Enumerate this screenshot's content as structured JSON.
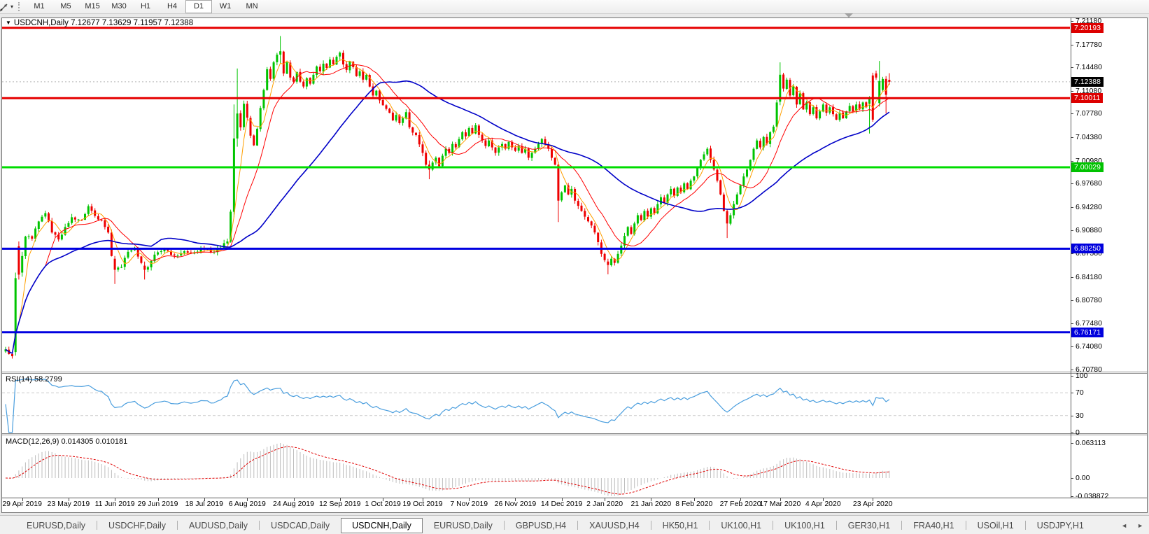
{
  "chart_title": {
    "symbol": "USDCNH,Daily",
    "ohlc": "7.12677 7.13629 7.11957 7.12388"
  },
  "icons": {
    "collapse": "▼",
    "tool_caret": "▾",
    "scroll_left": "◄",
    "scroll_right": "►"
  },
  "toolbar": {
    "timeframes": [
      "M1",
      "M5",
      "M15",
      "M30",
      "H1",
      "H4",
      "D1",
      "W1",
      "MN"
    ],
    "active": "D1"
  },
  "indicators": {
    "rsi_label": "RSI(14) 58.2799",
    "macd_label": "MACD(12,26,9) 0.014305 0.010181"
  },
  "price_axis": {
    "ticks": [
      "7.21180",
      "7.17780",
      "7.14480",
      "7.11080",
      "7.07780",
      "7.04380",
      "7.00980",
      "6.97680",
      "6.94280",
      "6.90880",
      "6.87580",
      "6.84180",
      "6.80780",
      "6.77480",
      "6.74080",
      "6.70780"
    ],
    "badges": [
      {
        "label": "7.20193",
        "value": 7.20193,
        "color": "#dd0000"
      },
      {
        "label": "7.12388",
        "value": 7.12388,
        "color": "#000000"
      },
      {
        "label": "7.10011",
        "value": 7.10011,
        "color": "#dd0000"
      },
      {
        "label": "7.00029",
        "value": 7.00029,
        "color": "#00c200"
      },
      {
        "label": "6.88250",
        "value": 6.8825,
        "color": "#0000dd"
      },
      {
        "label": "6.76171",
        "value": 6.76171,
        "color": "#0000dd"
      }
    ]
  },
  "rsi_axis": {
    "ticks": [
      {
        "label": "100",
        "value": 100
      },
      {
        "label": "70",
        "value": 70
      },
      {
        "label": "30",
        "value": 30
      },
      {
        "label": "0",
        "value": 0
      }
    ],
    "levels": [
      70,
      30
    ]
  },
  "macd_axis": {
    "ticks": [
      {
        "label": "0.063113",
        "value": 0.063113
      },
      {
        "label": "0.00",
        "value": 0
      },
      {
        "label": "-0.038872",
        "value": -0.038872
      }
    ]
  },
  "dates": [
    {
      "label": "29 Apr 2019",
      "i": 5
    },
    {
      "label": "23 May 2019",
      "i": 19
    },
    {
      "label": "11 Jun 2019",
      "i": 33
    },
    {
      "label": "29 Jun 2019",
      "i": 46
    },
    {
      "label": "18 Jul 2019",
      "i": 60
    },
    {
      "label": "6 Aug 2019",
      "i": 73
    },
    {
      "label": "24 Aug 2019",
      "i": 87
    },
    {
      "label": "12 Sep 2019",
      "i": 101
    },
    {
      "label": "1 Oct 2019",
      "i": 114
    },
    {
      "label": "19 Oct 2019",
      "i": 126
    },
    {
      "label": "7 Nov 2019",
      "i": 140
    },
    {
      "label": "26 Nov 2019",
      "i": 154
    },
    {
      "label": "14 Dec 2019",
      "i": 168
    },
    {
      "label": "2 Jan 2020",
      "i": 181
    },
    {
      "label": "21 Jan 2020",
      "i": 195
    },
    {
      "label": "8 Feb 2020",
      "i": 208
    },
    {
      "label": "27 Feb 2020",
      "i": 222
    },
    {
      "label": "17 Mar 2020",
      "i": 234
    },
    {
      "label": "4 Apr 2020",
      "i": 247
    },
    {
      "label": "23 Apr 2020",
      "i": 262
    }
  ],
  "tabs": {
    "items": [
      "EURUSD,Daily",
      "USDCHF,Daily",
      "AUDUSD,Daily",
      "USDCAD,Daily",
      "USDCNH,Daily",
      "EURUSD,Daily",
      "GBPUSD,H4",
      "XAUUSD,H4",
      "HK50,H1",
      "UK100,H1",
      "UK100,H1",
      "GER30,H1",
      "FRA40,H1",
      "USOil,H1",
      "USDJPY,H1"
    ],
    "active_index": 4
  },
  "chart_data": {
    "type": "candlestick",
    "symbol": "USDCNH",
    "timeframe": "Daily",
    "last": {
      "open": 7.12677,
      "high": 7.13629,
      "low": 7.11957,
      "close": 7.12388
    },
    "candle_count": 268,
    "bar_spacing": 4.73,
    "price_top": 7.2158,
    "price_bottom": 6.7048,
    "current_price": 7.12388,
    "colors": {
      "up": "#00c400",
      "down": "#ee0000",
      "ma_fast": "#ff9f00",
      "ma_mid": "#ff0000",
      "ma_slow": "#0000c8",
      "rsi": "#4a9ede",
      "macd_hist": "#bdbdbd",
      "macd_signal": "#e00000",
      "current_dotted": "#b4b4b4"
    },
    "moving_averages": [
      {
        "period": 5,
        "color_key": "ma_fast"
      },
      {
        "period": 13,
        "color_key": "ma_mid"
      },
      {
        "period": 45,
        "color_key": "ma_slow"
      }
    ],
    "hlines": [
      {
        "price": 7.20193,
        "color": "#e60000"
      },
      {
        "price": 7.10011,
        "color": "#e60000"
      },
      {
        "price": 7.00029,
        "color": "#00dc00"
      },
      {
        "price": 6.8825,
        "color": "#0000e0"
      },
      {
        "price": 6.76171,
        "color": "#0000e0"
      }
    ],
    "rsi": {
      "period": 14,
      "current": 58.2799
    },
    "macd": {
      "fast": 12,
      "slow": 26,
      "signal": 9,
      "current": 0.014305,
      "current_signal": 0.010181,
      "scale_max": 0.063113,
      "scale_min": -0.038872
    },
    "anchors": [
      [
        0,
        6.737
      ],
      [
        2,
        6.727
      ],
      [
        3,
        6.84
      ],
      [
        4,
        6.845
      ],
      [
        5,
        6.872
      ],
      [
        6,
        6.9
      ],
      [
        8,
        6.897
      ],
      [
        10,
        6.922
      ],
      [
        12,
        6.934
      ],
      [
        14,
        6.906
      ],
      [
        16,
        6.896
      ],
      [
        18,
        6.914
      ],
      [
        20,
        6.928
      ],
      [
        23,
        6.924
      ],
      [
        25,
        6.944
      ],
      [
        27,
        6.93
      ],
      [
        29,
        6.924
      ],
      [
        31,
        6.906
      ],
      [
        32,
        6.872
      ],
      [
        33,
        6.852
      ],
      [
        35,
        6.856
      ],
      [
        37,
        6.878
      ],
      [
        39,
        6.884
      ],
      [
        41,
        6.862
      ],
      [
        42,
        6.852
      ],
      [
        43,
        6.856
      ],
      [
        45,
        6.874
      ],
      [
        48,
        6.882
      ],
      [
        51,
        6.873
      ],
      [
        54,
        6.879
      ],
      [
        57,
        6.877
      ],
      [
        60,
        6.882
      ],
      [
        63,
        6.878
      ],
      [
        65,
        6.884
      ],
      [
        67,
        6.893
      ],
      [
        68,
        6.936
      ],
      [
        69,
        7.042
      ],
      [
        70,
        7.078
      ],
      [
        71,
        7.058
      ],
      [
        72,
        7.092
      ],
      [
        73,
        7.072
      ],
      [
        74,
        7.046
      ],
      [
        75,
        7.032
      ],
      [
        76,
        7.056
      ],
      [
        77,
        7.086
      ],
      [
        78,
        7.112
      ],
      [
        79,
        7.142
      ],
      [
        80,
        7.128
      ],
      [
        81,
        7.152
      ],
      [
        82,
        7.163
      ],
      [
        83,
        7.168
      ],
      [
        84,
        7.136
      ],
      [
        85,
        7.152
      ],
      [
        86,
        7.13
      ],
      [
        87,
        7.124
      ],
      [
        88,
        7.138
      ],
      [
        89,
        7.124
      ],
      [
        90,
        7.117
      ],
      [
        91,
        7.129
      ],
      [
        92,
        7.121
      ],
      [
        93,
        7.134
      ],
      [
        94,
        7.146
      ],
      [
        95,
        7.139
      ],
      [
        96,
        7.15
      ],
      [
        97,
        7.144
      ],
      [
        98,
        7.156
      ],
      [
        99,
        7.149
      ],
      [
        100,
        7.16
      ],
      [
        101,
        7.166
      ],
      [
        102,
        7.149
      ],
      [
        103,
        7.141
      ],
      [
        104,
        7.153
      ],
      [
        105,
        7.145
      ],
      [
        106,
        7.132
      ],
      [
        107,
        7.139
      ],
      [
        108,
        7.127
      ],
      [
        109,
        7.134
      ],
      [
        110,
        7.117
      ],
      [
        111,
        7.104
      ],
      [
        112,
        7.111
      ],
      [
        113,
        7.097
      ],
      [
        114,
        7.09
      ],
      [
        116,
        7.079
      ],
      [
        117,
        7.068
      ],
      [
        118,
        7.076
      ],
      [
        119,
        7.064
      ],
      [
        120,
        7.071
      ],
      [
        121,
        7.08
      ],
      [
        122,
        7.058
      ],
      [
        124,
        7.047
      ],
      [
        126,
        7.021
      ],
      [
        127,
        7.004
      ],
      [
        128,
        6.997
      ],
      [
        129,
        7.007
      ],
      [
        130,
        7.014
      ],
      [
        131,
        7.002
      ],
      [
        132,
        7.017
      ],
      [
        133,
        7.027
      ],
      [
        134,
        7.021
      ],
      [
        135,
        7.034
      ],
      [
        136,
        7.029
      ],
      [
        137,
        7.041
      ],
      [
        138,
        7.051
      ],
      [
        139,
        7.045
      ],
      [
        140,
        7.057
      ],
      [
        141,
        7.049
      ],
      [
        142,
        7.061
      ],
      [
        143,
        7.047
      ],
      [
        144,
        7.039
      ],
      [
        145,
        7.031
      ],
      [
        146,
        7.039
      ],
      [
        147,
        7.029
      ],
      [
        148,
        7.021
      ],
      [
        149,
        7.029
      ],
      [
        150,
        7.034
      ],
      [
        151,
        7.027
      ],
      [
        152,
        7.037
      ],
      [
        153,
        7.029
      ],
      [
        154,
        7.024
      ],
      [
        155,
        7.031
      ],
      [
        156,
        7.021
      ],
      [
        157,
        7.027
      ],
      [
        158,
        7.014
      ],
      [
        159,
        7.021
      ],
      [
        160,
        7.027
      ],
      [
        161,
        7.034
      ],
      [
        162,
        7.041
      ],
      [
        163,
        7.034
      ],
      [
        164,
        7.027
      ],
      [
        165,
        7.014
      ],
      [
        166,
        7.004
      ],
      [
        167,
        6.952
      ],
      [
        168,
        6.964
      ],
      [
        169,
        6.974
      ],
      [
        170,
        6.961
      ],
      [
        171,
        6.969
      ],
      [
        172,
        6.952
      ],
      [
        174,
        6.937
      ],
      [
        176,
        6.922
      ],
      [
        178,
        6.906
      ],
      [
        179,
        6.892
      ],
      [
        180,
        6.875
      ],
      [
        181,
        6.866
      ],
      [
        182,
        6.859
      ],
      [
        183,
        6.868
      ],
      [
        184,
        6.862
      ],
      [
        185,
        6.875
      ],
      [
        186,
        6.887
      ],
      [
        187,
        6.901
      ],
      [
        188,
        6.914
      ],
      [
        189,
        6.904
      ],
      [
        190,
        6.919
      ],
      [
        191,
        6.931
      ],
      [
        192,
        6.924
      ],
      [
        193,
        6.937
      ],
      [
        194,
        6.929
      ],
      [
        195,
        6.941
      ],
      [
        196,
        6.934
      ],
      [
        197,
        6.947
      ],
      [
        198,
        6.957
      ],
      [
        199,
        6.949
      ],
      [
        200,
        6.961
      ],
      [
        201,
        6.969
      ],
      [
        202,
        6.959
      ],
      [
        203,
        6.971
      ],
      [
        204,
        6.964
      ],
      [
        205,
        6.977
      ],
      [
        206,
        6.969
      ],
      [
        207,
        6.981
      ],
      [
        208,
        6.987
      ],
      [
        209,
        6.999
      ],
      [
        210,
        7.011
      ],
      [
        211,
        7.019
      ],
      [
        212,
        7.027
      ],
      [
        213,
        7.011
      ],
      [
        214,
        6.997
      ],
      [
        215,
        6.981
      ],
      [
        216,
        6.961
      ],
      [
        217,
        6.937
      ],
      [
        218,
        6.919
      ],
      [
        219,
        6.931
      ],
      [
        220,
        6.947
      ],
      [
        221,
        6.961
      ],
      [
        222,
        6.974
      ],
      [
        223,
        6.987
      ],
      [
        224,
        6.997
      ],
      [
        225,
        7.011
      ],
      [
        226,
        7.027
      ],
      [
        227,
        7.039
      ],
      [
        228,
        7.029
      ],
      [
        229,
        7.044
      ],
      [
        230,
        7.034
      ],
      [
        231,
        7.051
      ],
      [
        232,
        7.059
      ],
      [
        233,
        7.094
      ],
      [
        234,
        7.134
      ],
      [
        235,
        7.114
      ],
      [
        236,
        7.127
      ],
      [
        237,
        7.104
      ],
      [
        238,
        7.117
      ],
      [
        239,
        7.091
      ],
      [
        240,
        7.107
      ],
      [
        241,
        7.084
      ],
      [
        242,
        7.094
      ],
      [
        243,
        7.077
      ],
      [
        244,
        7.087
      ],
      [
        245,
        7.071
      ],
      [
        246,
        7.081
      ],
      [
        247,
        7.091
      ],
      [
        248,
        7.079
      ],
      [
        249,
        7.087
      ],
      [
        250,
        7.077
      ],
      [
        251,
        7.069
      ],
      [
        252,
        7.079
      ],
      [
        253,
        7.071
      ],
      [
        254,
        7.081
      ],
      [
        255,
        7.089
      ],
      [
        256,
        7.081
      ],
      [
        257,
        7.091
      ],
      [
        258,
        7.084
      ],
      [
        259,
        7.094
      ],
      [
        260,
        7.087
      ],
      [
        261,
        7.099
      ],
      [
        262,
        7.069
      ],
      [
        263,
        7.13
      ],
      [
        264,
        7.125
      ],
      [
        265,
        7.128
      ],
      [
        266,
        7.105
      ],
      [
        267,
        7.12388
      ]
    ],
    "overrides": {
      "3": {
        "o": 6.733,
        "h": 6.848,
        "l": 6.728,
        "c": 6.84
      },
      "4": {
        "o": 6.886,
        "h": 6.893,
        "l": 6.838,
        "c": 6.845
      },
      "5": {
        "o": 6.848,
        "h": 6.878,
        "l": 6.842,
        "c": 6.872
      },
      "33": {
        "o": 6.868,
        "h": 6.872,
        "l": 6.8315,
        "c": 6.852
      },
      "42": {
        "o": 6.858,
        "h": 6.864,
        "l": 6.838,
        "c": 6.852
      },
      "69": {
        "o": 6.936,
        "h": 7.091,
        "l": 6.928,
        "c": 7.042
      },
      "70": {
        "o": 7.042,
        "h": 7.143,
        "l": 7.03,
        "c": 7.078
      },
      "83": {
        "o": 7.163,
        "h": 7.19,
        "l": 7.15,
        "c": 7.168
      },
      "128": {
        "o": 7.004,
        "h": 7.01,
        "l": 6.983,
        "c": 6.997
      },
      "167": {
        "o": 7.004,
        "h": 7.008,
        "l": 6.921,
        "c": 6.952
      },
      "182": {
        "o": 6.864,
        "h": 6.868,
        "l": 6.8455,
        "c": 6.859
      },
      "218": {
        "o": 6.937,
        "h": 6.94,
        "l": 6.898,
        "c": 6.919
      },
      "234": {
        "o": 7.095,
        "h": 7.152,
        "l": 7.09,
        "c": 7.134
      },
      "261": {
        "o": 7.092,
        "h": 7.103,
        "l": 7.049,
        "c": 7.099
      },
      "262": {
        "o": 7.133,
        "h": 7.137,
        "l": 7.066,
        "c": 7.069
      },
      "263": {
        "o": 7.136,
        "h": 7.14,
        "l": 7.127,
        "c": 7.13
      },
      "264": {
        "o": 7.093,
        "h": 7.154,
        "l": 7.088,
        "c": 7.125
      },
      "265": {
        "o": 7.112,
        "h": 7.131,
        "l": 7.109,
        "c": 7.128
      },
      "266": {
        "o": 7.128,
        "h": 7.132,
        "l": 7.078,
        "c": 7.105
      },
      "267": {
        "o": 7.12677,
        "h": 7.13629,
        "l": 7.11957,
        "c": 7.12388
      }
    }
  }
}
